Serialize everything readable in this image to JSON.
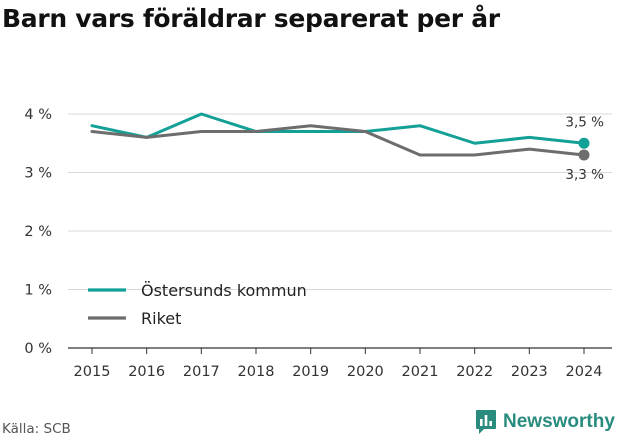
{
  "title": "Barn vars föräldrar separerat per år",
  "source": "Källa: SCB",
  "brand": {
    "name": "Newsworthy",
    "icon": "newsworthy-logo-icon",
    "color": "#2a8c7f"
  },
  "chart_data": {
    "type": "line",
    "title": "Barn vars föräldrar separerat per år",
    "x": [
      "2015",
      "2016",
      "2017",
      "2018",
      "2019",
      "2020",
      "2021",
      "2022",
      "2023",
      "2024"
    ],
    "y_ticks": [
      "0 %",
      "1 %",
      "2 %",
      "3 %",
      "4 %"
    ],
    "ylim": [
      0,
      4
    ],
    "grid": true,
    "legend_position": "bottom-left",
    "series": [
      {
        "name": "Östersunds kommun",
        "color": "#13a096",
        "values": [
          3.8,
          3.6,
          4.0,
          3.7,
          3.7,
          3.7,
          3.8,
          3.5,
          3.6,
          3.5
        ],
        "end_label": "3,5 %"
      },
      {
        "name": "Riket",
        "color": "#6d6d6d",
        "values": [
          3.7,
          3.6,
          3.7,
          3.7,
          3.8,
          3.7,
          3.3,
          3.3,
          3.4,
          3.3
        ],
        "end_label": "3,3 %"
      }
    ]
  }
}
